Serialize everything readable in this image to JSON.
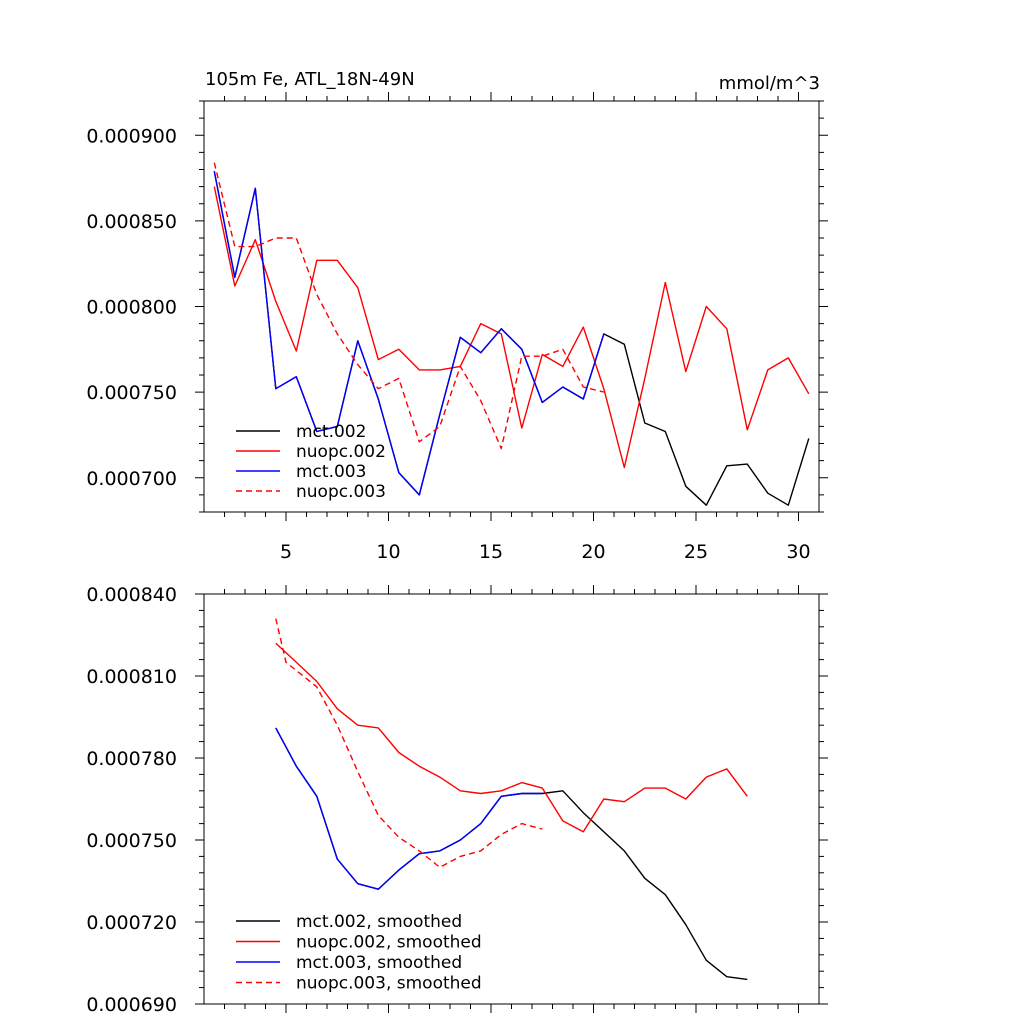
{
  "chart_data": [
    {
      "type": "line",
      "title": "105m Fe, ATL_18N-49N",
      "units": "mmol/m^3",
      "xlim": [
        1,
        31
      ],
      "ylim": [
        0.00068,
        0.00092
      ],
      "xticks": [
        5,
        10,
        15,
        20,
        25,
        30
      ],
      "yticks": [
        0.0007,
        0.00075,
        0.0008,
        0.00085,
        0.0009
      ],
      "ytick_labels": [
        "0.000700",
        "0.000750",
        "0.000800",
        "0.000850",
        "0.000900"
      ],
      "legend_position": "bottom-left",
      "series": [
        {
          "name": "mct.002",
          "color": "#000000",
          "dash": "solid",
          "x": [
            1.5,
            2.5,
            3.5,
            4.5,
            5.5,
            6.5,
            7.5,
            8.5,
            9.5,
            10.5,
            11.5,
            12.5,
            13.5,
            14.5,
            15.5,
            16.5,
            17.5,
            18.5,
            19.5,
            20.5,
            21.5,
            22.5,
            23.5,
            24.5,
            25.5,
            26.5,
            27.5,
            28.5,
            29.5,
            30.5
          ],
          "y": [
            0.000879,
            0.000817,
            0.000869,
            0.000752,
            0.000759,
            0.000727,
            0.00073,
            0.00078,
            0.000746,
            0.000703,
            0.00069,
            0.000737,
            0.000782,
            0.000773,
            0.000787,
            0.000775,
            0.000744,
            0.000753,
            0.000746,
            0.000784,
            0.000778,
            0.000732,
            0.000727,
            0.000695,
            0.000684,
            0.000707,
            0.000708,
            0.000691,
            0.000684,
            0.000723
          ]
        },
        {
          "name": "nuopc.002",
          "color": "#ff0000",
          "dash": "solid",
          "x": [
            1.5,
            2.5,
            3.5,
            4.5,
            5.5,
            6.5,
            7.5,
            8.5,
            9.5,
            10.5,
            11.5,
            12.5,
            13.5,
            14.5,
            15.5,
            16.5,
            17.5,
            18.5,
            19.5,
            20.5,
            21.5,
            22.5,
            23.5,
            24.5,
            25.5,
            26.5,
            27.5,
            28.5,
            29.5,
            30.5
          ],
          "y": [
            0.00087,
            0.000812,
            0.000839,
            0.000803,
            0.000774,
            0.000827,
            0.000827,
            0.000811,
            0.000769,
            0.000775,
            0.000763,
            0.000763,
            0.000765,
            0.00079,
            0.000784,
            0.000729,
            0.000772,
            0.000765,
            0.000788,
            0.000752,
            0.000706,
            0.000758,
            0.000814,
            0.000762,
            0.0008,
            0.000787,
            0.000728,
            0.000763,
            0.00077,
            0.000749
          ]
        },
        {
          "name": "mct.003",
          "color": "#0000ff",
          "dash": "solid",
          "x": [
            1.5,
            2.5,
            3.5,
            4.5,
            5.5,
            6.5,
            7.5,
            8.5,
            9.5,
            10.5,
            11.5,
            12.5,
            13.5,
            14.5,
            15.5,
            16.5,
            17.5,
            18.5,
            19.5,
            20.5
          ],
          "y": [
            0.000879,
            0.000817,
            0.000869,
            0.000752,
            0.000759,
            0.000727,
            0.00073,
            0.00078,
            0.000746,
            0.000703,
            0.00069,
            0.000737,
            0.000782,
            0.000773,
            0.000787,
            0.000775,
            0.000744,
            0.000753,
            0.000746,
            0.000784
          ]
        },
        {
          "name": "nuopc.003",
          "color": "#ff0000",
          "dash": "dashed",
          "x": [
            1.5,
            2.5,
            3.5,
            4.5,
            5.5,
            6.5,
            7.5,
            8.5,
            9.5,
            10.5,
            11.5,
            12.5,
            13.5,
            14.5,
            15.5,
            16.5,
            17.5,
            18.5,
            19.5,
            20.5
          ],
          "y": [
            0.000884,
            0.000835,
            0.000835,
            0.00084,
            0.00084,
            0.000807,
            0.000784,
            0.000766,
            0.000752,
            0.000758,
            0.000721,
            0.00073,
            0.000765,
            0.000745,
            0.000717,
            0.000771,
            0.000771,
            0.000775,
            0.000753,
            0.00075
          ]
        }
      ]
    },
    {
      "type": "line",
      "xlim": [
        1,
        31
      ],
      "ylim": [
        0.00069,
        0.00084
      ],
      "xticks": [
        5,
        10,
        15,
        20,
        25,
        30
      ],
      "yticks": [
        0.00069,
        0.00072,
        0.00075,
        0.00078,
        0.00081,
        0.00084
      ],
      "ytick_labels": [
        "0.000690",
        "0.000720",
        "0.000750",
        "0.000780",
        "0.000810",
        "0.000840"
      ],
      "legend_position": "bottom-left",
      "series": [
        {
          "name": "mct.002, smoothed",
          "color": "#000000",
          "dash": "solid",
          "x": [
            4.5,
            5.5,
            6.5,
            7.5,
            8.5,
            9.5,
            10.5,
            11.5,
            12.5,
            13.5,
            14.5,
            15.5,
            16.5,
            17.5,
            18.5,
            19.5,
            20.5,
            21.5,
            22.5,
            23.5,
            24.5,
            25.5,
            26.5,
            27.5
          ],
          "y": [
            0.000791,
            0.000777,
            0.000766,
            0.000743,
            0.000734,
            0.000732,
            0.000739,
            0.000745,
            0.000746,
            0.00075,
            0.000756,
            0.000766,
            0.000767,
            0.000767,
            0.000768,
            0.00076,
            0.000753,
            0.000746,
            0.000736,
            0.00073,
            0.000719,
            0.000706,
            0.0007,
            0.000699
          ]
        },
        {
          "name": "nuopc.002, smoothed",
          "color": "#ff0000",
          "dash": "solid",
          "x": [
            4.5,
            5.5,
            6.5,
            7.5,
            8.5,
            9.5,
            10.5,
            11.5,
            12.5,
            13.5,
            14.5,
            15.5,
            16.5,
            17.5,
            18.5,
            19.5,
            20.5,
            21.5,
            22.5,
            23.5,
            24.5,
            25.5,
            26.5,
            27.5
          ],
          "y": [
            0.000822,
            0.000815,
            0.000808,
            0.000798,
            0.000792,
            0.000791,
            0.000782,
            0.000777,
            0.000773,
            0.000768,
            0.000767,
            0.000768,
            0.000771,
            0.000769,
            0.000757,
            0.000753,
            0.000765,
            0.000764,
            0.000769,
            0.000769,
            0.000765,
            0.000773,
            0.000776,
            0.000766
          ]
        },
        {
          "name": "mct.003, smoothed",
          "color": "#0000ff",
          "dash": "solid",
          "x": [
            4.5,
            5.5,
            6.5,
            7.5,
            8.5,
            9.5,
            10.5,
            11.5,
            12.5,
            13.5,
            14.5,
            15.5,
            16.5,
            17.5
          ],
          "y": [
            0.000791,
            0.000777,
            0.000766,
            0.000743,
            0.000734,
            0.000732,
            0.000739,
            0.000745,
            0.000746,
            0.00075,
            0.000756,
            0.000766,
            0.000767,
            0.000767
          ]
        },
        {
          "name": "nuopc.003, smoothed",
          "color": "#ff0000",
          "dash": "dashed",
          "x": [
            4.5,
            5.0,
            6.5,
            7.5,
            8.5,
            9.5,
            10.5,
            11.5,
            12.5,
            13.5,
            14.5,
            15.5,
            16.5,
            17.5
          ],
          "y": [
            0.000831,
            0.000815,
            0.000806,
            0.000792,
            0.000775,
            0.000759,
            0.000751,
            0.000746,
            0.00074,
            0.000744,
            0.000746,
            0.000752,
            0.000756,
            0.000754
          ]
        }
      ]
    }
  ]
}
